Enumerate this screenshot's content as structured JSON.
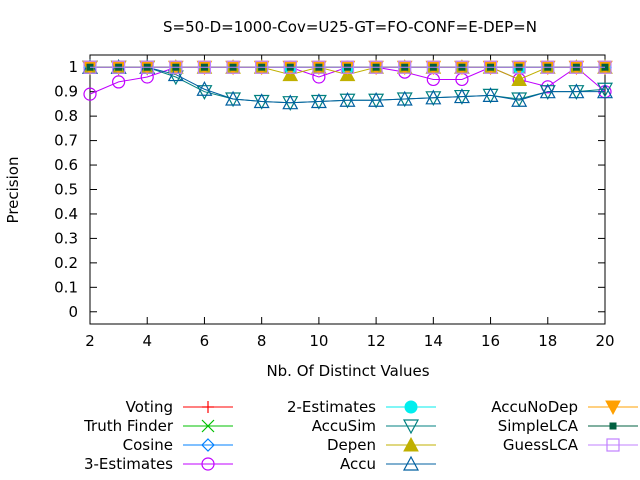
{
  "chart_data": {
    "type": "line",
    "title": "S=50-D=1000-Cov=U25-GT=FO-CONF=E-DEP=N",
    "xlabel": "Nb. Of Distinct Values",
    "ylabel": "Precision",
    "xlim": [
      2,
      20
    ],
    "ylim": [
      -0.05,
      1.05
    ],
    "xticks": [
      2,
      4,
      6,
      8,
      10,
      12,
      14,
      16,
      18,
      20
    ],
    "yticks": [
      0,
      0.1,
      0.2,
      0.3,
      0.4,
      0.5,
      0.6,
      0.7,
      0.8,
      0.9,
      1
    ],
    "ytick_labels": [
      "0",
      "0.1",
      "0.2",
      "0.3",
      "0.4",
      "0.5",
      "0.6",
      "0.7",
      "0.8",
      "0.9",
      "1"
    ],
    "grid": false,
    "legend_position": "bottom",
    "x": [
      2,
      3,
      4,
      5,
      6,
      7,
      8,
      9,
      10,
      11,
      12,
      13,
      14,
      15,
      16,
      17,
      18,
      19,
      20
    ],
    "series": [
      {
        "name": "Voting",
        "color": "#ff0000",
        "marker": "plus",
        "values": [
          1,
          1,
          1,
          1,
          1,
          1,
          1,
          1,
          1,
          1,
          1,
          1,
          1,
          1,
          1,
          1,
          1,
          1,
          1
        ]
      },
      {
        "name": "Truth Finder",
        "color": "#00c000",
        "marker": "cross",
        "values": [
          1,
          1,
          1,
          1,
          1,
          1,
          1,
          1,
          1,
          1,
          1,
          1,
          1,
          1,
          1,
          1,
          1,
          1,
          1
        ]
      },
      {
        "name": "Cosine",
        "color": "#0080ff",
        "marker": "diamond",
        "values": [
          1,
          1,
          1,
          1,
          1,
          1,
          1,
          1,
          1,
          1,
          1,
          1,
          1,
          1,
          1,
          1,
          1,
          1,
          1
        ]
      },
      {
        "name": "3-Estimates",
        "color": "#c000ff",
        "marker": "circle",
        "values": [
          0.89,
          0.94,
          0.96,
          1,
          1,
          1,
          1,
          1,
          0.96,
          1,
          1,
          0.98,
          0.95,
          0.95,
          1,
          0.95,
          0.92,
          1,
          0.9
        ]
      },
      {
        "name": "2-Estimates",
        "color": "#00eeee",
        "marker": "filled-circle",
        "values": [
          1,
          1,
          1,
          1,
          1,
          1,
          1,
          1,
          1,
          1,
          1,
          1,
          1,
          1,
          1,
          1,
          1,
          1,
          1
        ]
      },
      {
        "name": "AccuSim",
        "color": "#008080",
        "marker": "triangle-down",
        "values": [
          1,
          1,
          1,
          0.96,
          0.9,
          0.87,
          0.86,
          0.855,
          0.86,
          0.865,
          0.865,
          0.87,
          0.875,
          0.88,
          0.885,
          0.87,
          0.9,
          0.9,
          0.91
        ]
      },
      {
        "name": "Depen",
        "color": "#c0b000",
        "marker": "filled-triangle",
        "values": [
          1,
          1,
          1,
          1,
          1,
          1,
          1,
          0.97,
          1,
          0.97,
          1,
          1,
          1,
          1,
          1,
          0.95,
          1,
          1,
          1
        ]
      },
      {
        "name": "Accu",
        "color": "#0060a0",
        "marker": "triangle",
        "values": [
          1,
          1,
          1,
          0.97,
          0.91,
          0.87,
          0.86,
          0.855,
          0.86,
          0.865,
          0.865,
          0.87,
          0.875,
          0.88,
          0.885,
          0.865,
          0.9,
          0.9,
          0.9
        ]
      },
      {
        "name": "AccuNoDep",
        "color": "#ffa000",
        "marker": "filled-triangle-down",
        "values": [
          1,
          1,
          1,
          1,
          1,
          1,
          1,
          1,
          1,
          1,
          1,
          1,
          1,
          1,
          1,
          1,
          1,
          1,
          1
        ]
      },
      {
        "name": "SimpleLCA",
        "color": "#006040",
        "marker": "filled-square",
        "values": [
          1,
          1,
          1,
          1,
          1,
          1,
          1,
          1,
          1,
          1,
          1,
          1,
          1,
          1,
          1,
          1,
          1,
          1,
          1
        ]
      },
      {
        "name": "GuessLCA",
        "color": "#c080ff",
        "marker": "square",
        "values": [
          1,
          1,
          1,
          1,
          1,
          1,
          1,
          1,
          1,
          1,
          1,
          1,
          1,
          1,
          1,
          1,
          1,
          1,
          1
        ]
      }
    ]
  }
}
